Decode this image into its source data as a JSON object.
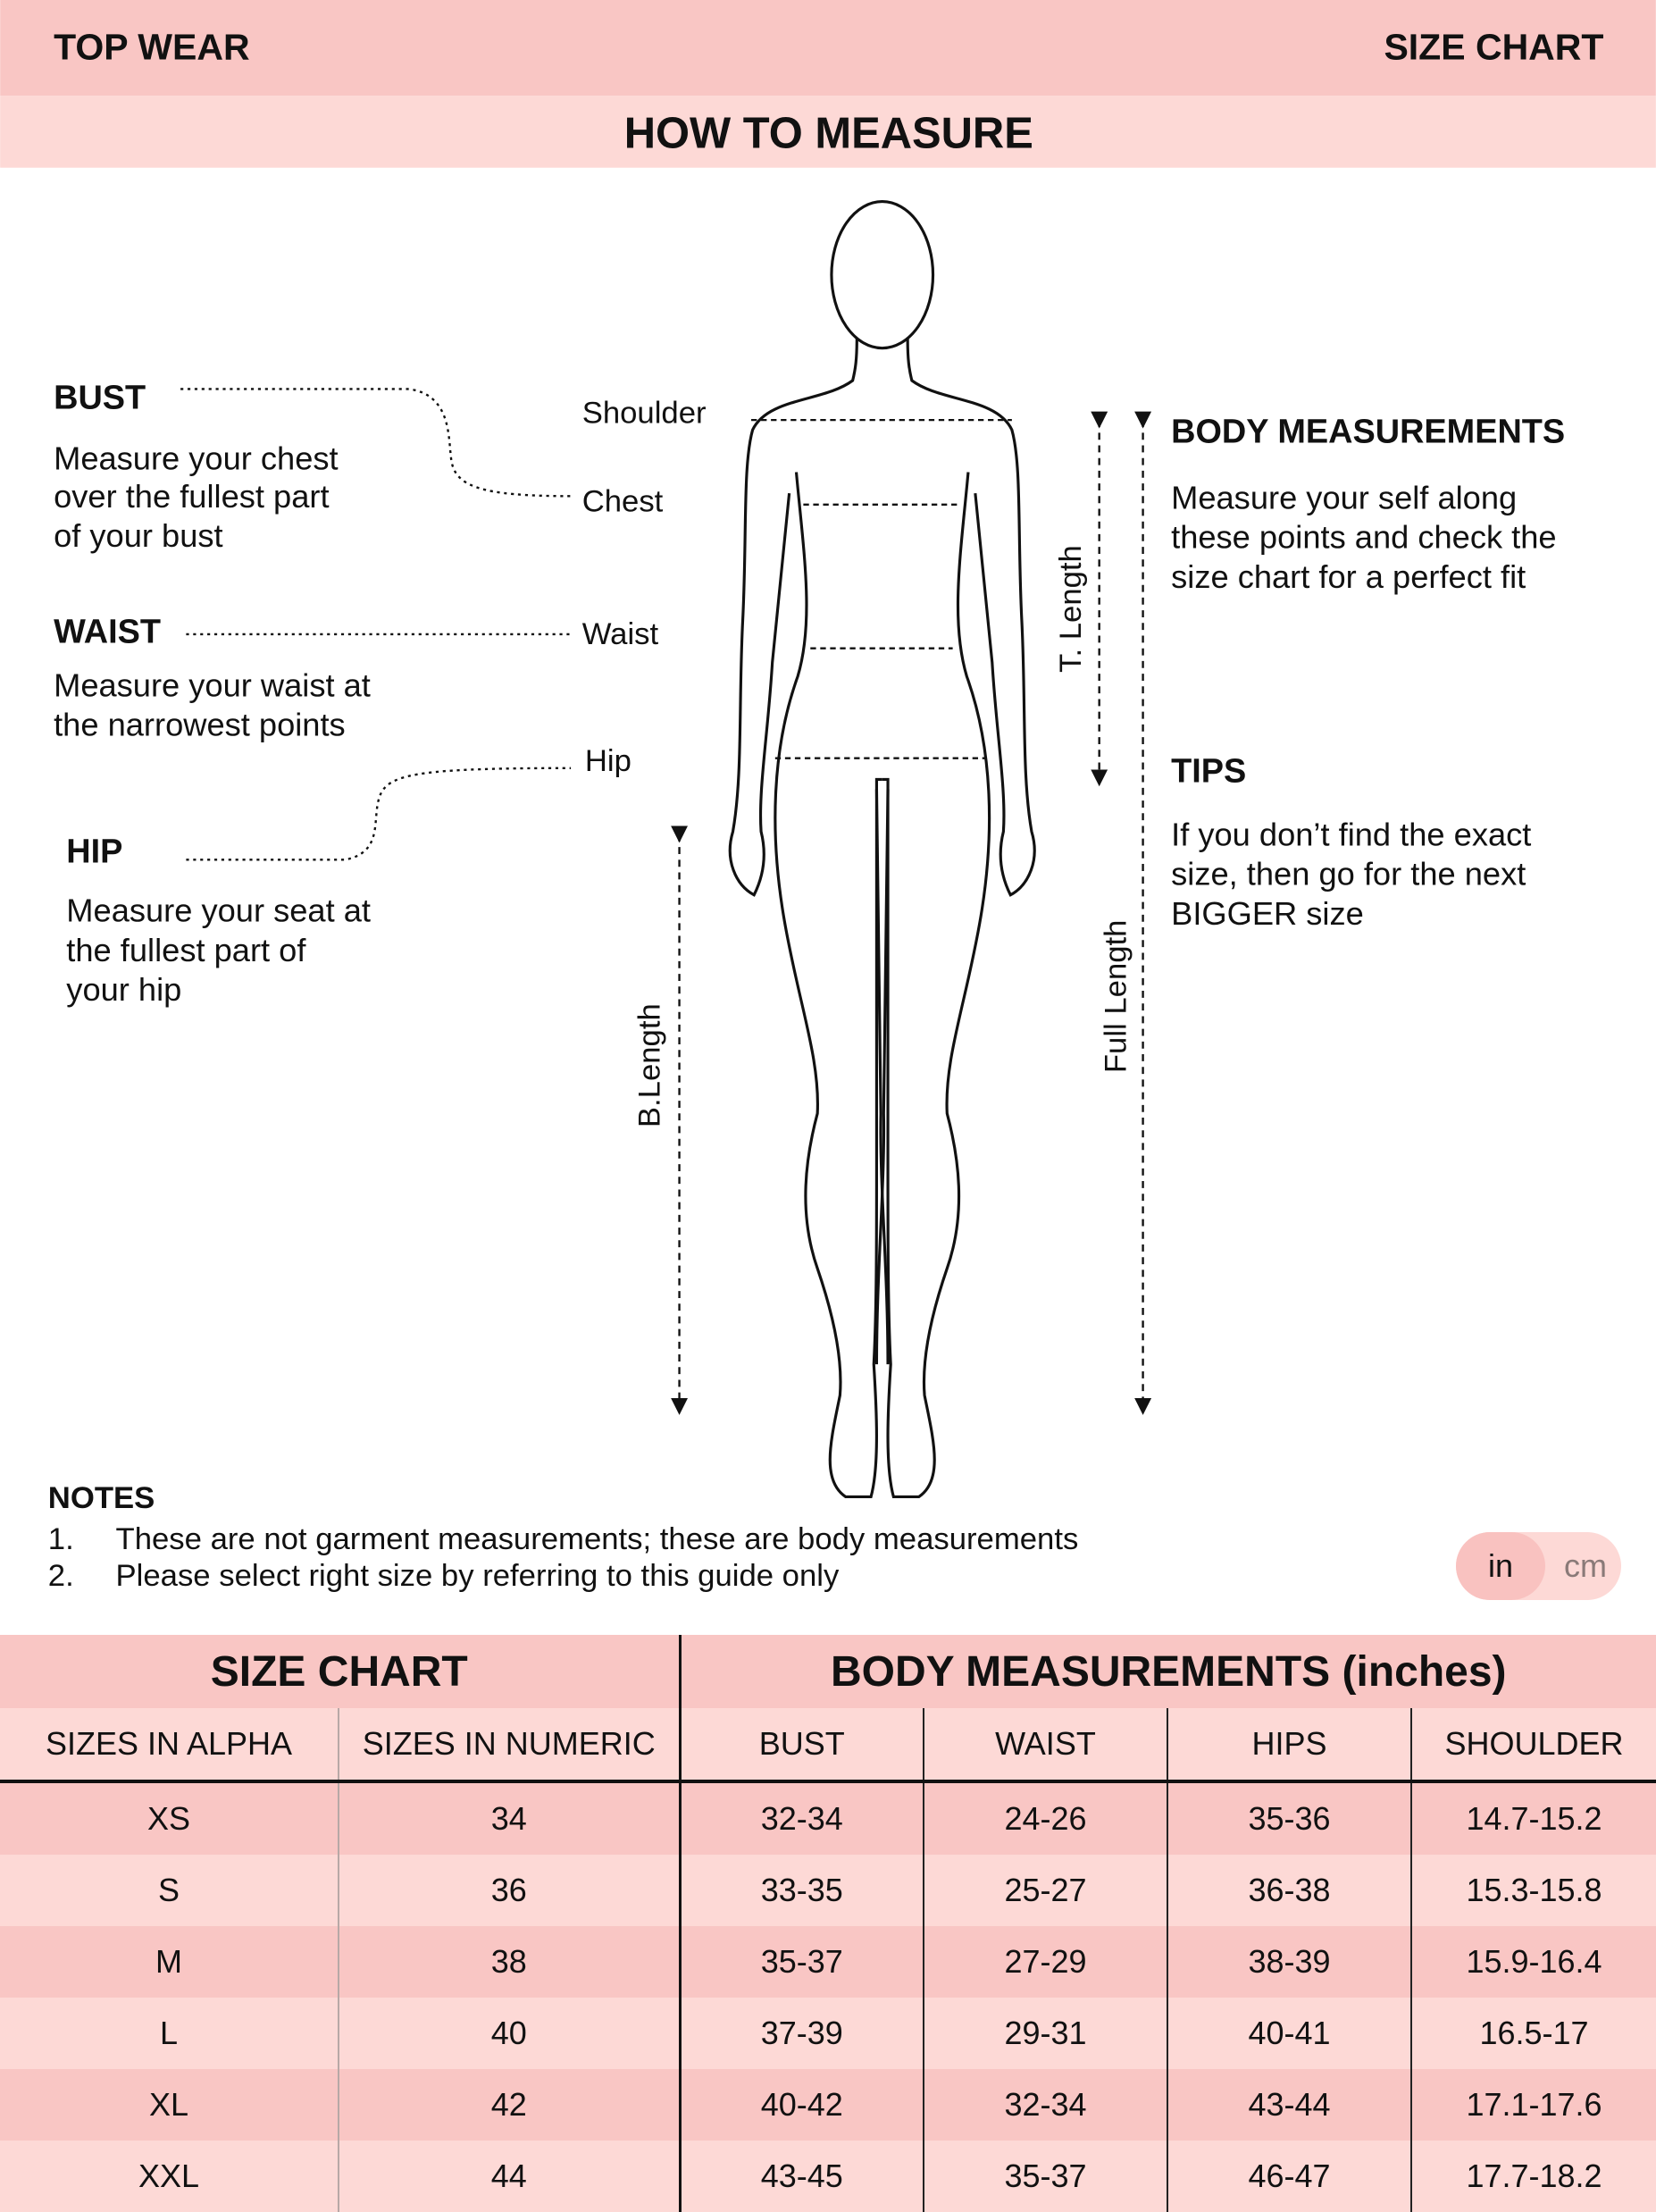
{
  "header": {
    "left": "TOP WEAR",
    "right": "SIZE CHART",
    "subtitle": "HOW TO MEASURE"
  },
  "guide": {
    "bust": {
      "title": "BUST",
      "lines": [
        "Measure your chest",
        "over the fullest part",
        "of your bust"
      ]
    },
    "waist": {
      "title": "WAIST",
      "lines": [
        "Measure your waist at",
        "the narrowest points"
      ]
    },
    "hip": {
      "title": "HIP",
      "lines": [
        "Measure your seat at",
        "the fullest part of",
        "your hip"
      ]
    },
    "points": {
      "shoulder": "Shoulder",
      "chest": "Chest",
      "waist": "Waist",
      "hip": "Hip"
    },
    "lengths": {
      "t": "T. Length",
      "b": "B.Length",
      "full": "Full Length"
    },
    "body_measurements": {
      "title": "BODY MEASUREMENTS",
      "lines": [
        "Measure your self  along",
        "these points and check the",
        "size chart for a perfect fit"
      ]
    },
    "tips": {
      "title": "TIPS",
      "lines": [
        "If you don’t find the exact",
        "size, then go for the next",
        "BIGGER size"
      ]
    }
  },
  "notes": {
    "title": "NOTES",
    "items": [
      {
        "num": "1.",
        "text": "These are not garment measurements; these are body measurements"
      },
      {
        "num": "2.",
        "text": "Please select right size by referring to this guide only"
      }
    ]
  },
  "unit_toggle": {
    "selected": "in",
    "other": "cm"
  },
  "table": {
    "group_headers": [
      "SIZE CHART",
      "BODY MEASUREMENTS (inches)"
    ],
    "columns": [
      "SIZES IN ALPHA",
      "SIZES IN NUMERIC",
      "BUST",
      "WAIST",
      "HIPS",
      "SHOULDER"
    ],
    "rows": [
      [
        "XS",
        "34",
        "32-34",
        "24-26",
        "35-36",
        "14.7-15.2"
      ],
      [
        "S",
        "36",
        "33-35",
        "25-27",
        "36-38",
        "15.3-15.8"
      ],
      [
        "M",
        "38",
        "35-37",
        "27-29",
        "38-39",
        "15.9-16.4"
      ],
      [
        "L",
        "40",
        "37-39",
        "29-31",
        "40-41",
        "16.5-17"
      ],
      [
        "XL",
        "42",
        "40-42",
        "32-34",
        "43-44",
        "17.1-17.6"
      ],
      [
        "XXL",
        "44",
        "43-45",
        "35-37",
        "46-47",
        "17.7-18.2"
      ]
    ]
  },
  "colors": {
    "dark_pink": "#f9c6c4",
    "light_pink": "#fdd9d6"
  }
}
